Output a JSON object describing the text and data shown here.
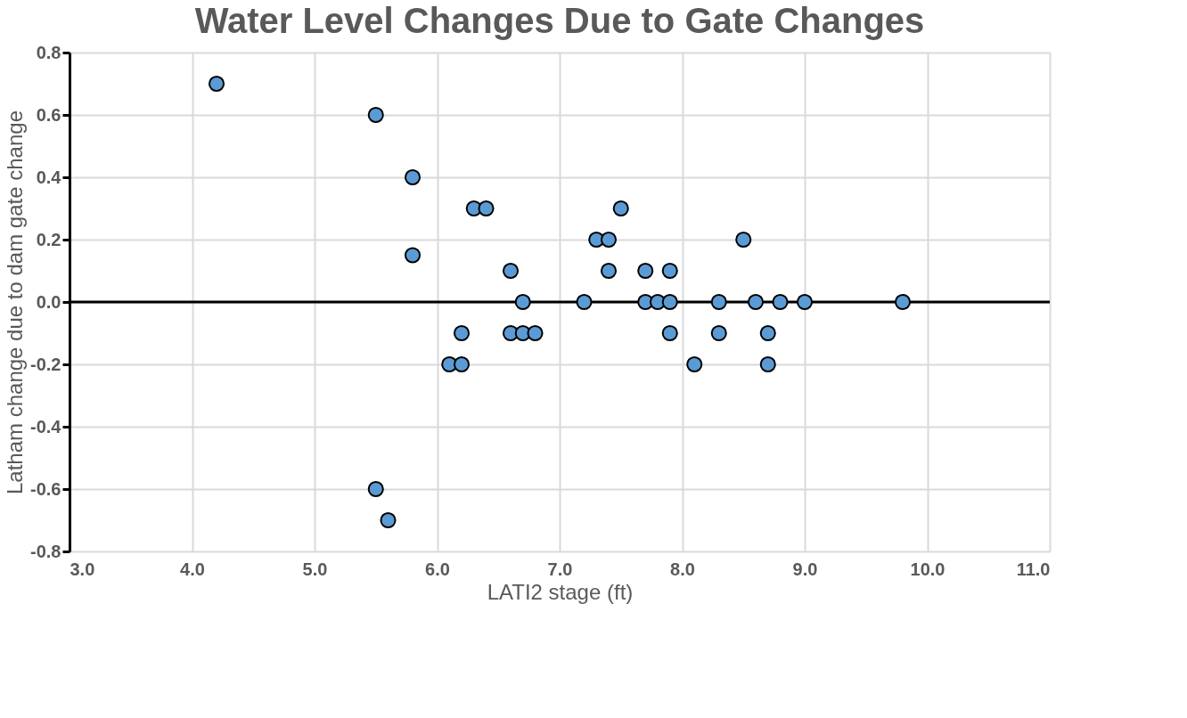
{
  "chart_data": {
    "type": "scatter",
    "title": "Water Level Changes Due to Gate Changes",
    "xlabel": "LATI2 stage (ft)",
    "ylabel": "Latham change due to dam gate change",
    "series": [
      {
        "color": "#5b9bd5",
        "x": [
          4.2,
          5.5,
          5.8,
          5.8,
          6.3,
          6.4,
          6.6,
          6.6,
          6.7,
          6.8,
          6.7,
          6.1,
          6.2,
          6.2,
          7.2,
          7.3,
          7.4,
          7.4,
          7.5,
          7.7,
          7.7,
          7.8,
          7.9,
          7.9,
          7.9,
          8.1,
          8.3,
          8.3,
          8.5,
          8.6,
          8.7,
          8.7,
          8.8,
          9.0,
          9.8,
          5.5,
          5.6
        ],
        "values": [
          0.7,
          0.6,
          0.4,
          0.15,
          0.3,
          0.3,
          0.1,
          -0.1,
          -0.1,
          -0.1,
          0.0,
          -0.2,
          -0.2,
          -0.1,
          0.0,
          0.2,
          0.2,
          0.1,
          0.3,
          0.1,
          0.0,
          0.0,
          0.0,
          0.1,
          -0.1,
          -0.2,
          0.0,
          -0.1,
          0.2,
          0.0,
          -0.1,
          -0.2,
          0.0,
          0.0,
          0.0,
          -0.6,
          -0.7
        ]
      }
    ],
    "xlim": [
      3.0,
      11.0
    ],
    "xticks": [
      {
        "value": 3,
        "label": "3.0"
      },
      {
        "value": 4,
        "label": "4.0"
      },
      {
        "value": 5,
        "label": "5.0"
      },
      {
        "value": 6,
        "label": "6.0"
      },
      {
        "value": 7,
        "label": "7.0"
      },
      {
        "value": 8,
        "label": "8.0"
      },
      {
        "value": 9,
        "label": "9.0"
      },
      {
        "value": 10,
        "label": "10.0"
      },
      {
        "value": 11,
        "label": "11.0"
      }
    ],
    "ylim": [
      -0.8,
      0.8
    ],
    "yticks": [
      {
        "value": -0.8,
        "label": "-0.8"
      },
      {
        "value": -0.6,
        "label": "-0.6"
      },
      {
        "value": -0.4,
        "label": "-0.4"
      },
      {
        "value": -0.2,
        "label": "-0.2"
      },
      {
        "value": 0,
        "label": "0.0"
      },
      {
        "value": 0.2,
        "label": "0.2"
      },
      {
        "value": 0.4,
        "label": "0.4"
      },
      {
        "value": 0.6,
        "label": "0.6"
      },
      {
        "value": 0.8,
        "label": "0.8"
      }
    ],
    "ref_lines": [
      {
        "axis": "y",
        "value": 0,
        "color": "#000000"
      }
    ],
    "grid": true,
    "marker": "circle"
  }
}
